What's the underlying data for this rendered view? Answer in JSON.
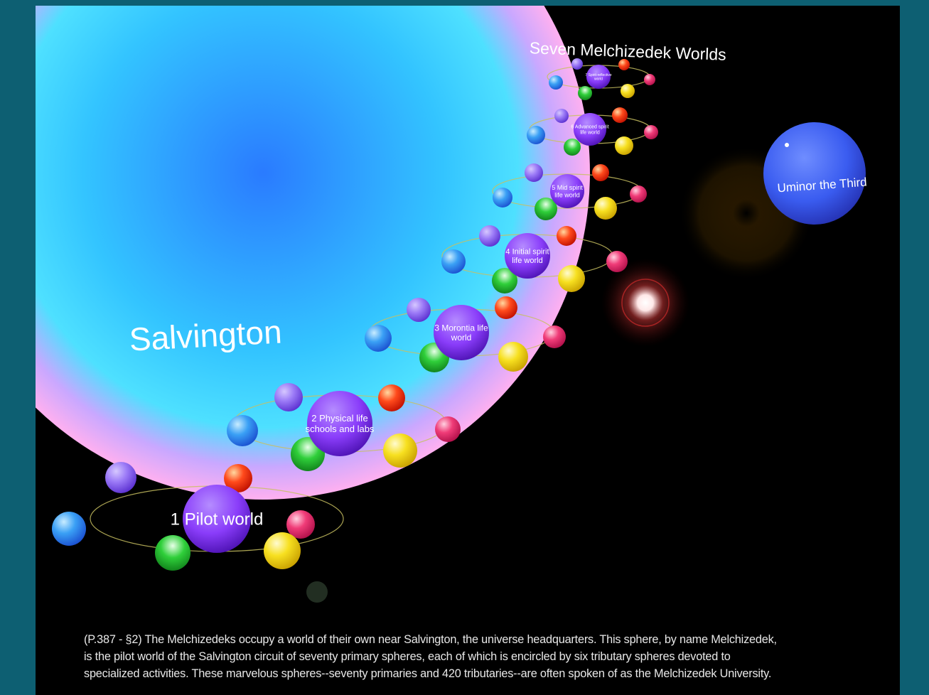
{
  "title": "Seven Melchizedek Worlds",
  "salvington_label": "Salvington",
  "uminor_label": "Uminor the Third",
  "caption_lines": [
    "(P.387 - §2) The Melchizedeks occupy a world of their own near Salvington, the universe headquarters. This sphere, by name Melchizedek,",
    " is the pilot world of the Salvington circuit of seventy primary spheres, each of which is encircled by six tributary spheres devoted to",
    "specialized activities. These marvelous spheres--seventy primaries and 420 tributaries--are often spoken of as the Melchizedek University."
  ],
  "worlds": [
    {
      "label_lines": [
        "1 Pilot world"
      ]
    },
    {
      "label_lines": [
        "2 Physical life",
        "schools and labs"
      ]
    },
    {
      "label_lines": [
        "3 Morontia life",
        "world"
      ]
    },
    {
      "label_lines": [
        "4 Initial spirit",
        "life world"
      ]
    },
    {
      "label_lines": [
        "5 Mid spirit",
        "life world"
      ]
    },
    {
      "label_lines": [
        "6 Advanced spirit",
        "life world"
      ]
    },
    {
      "label_lines": [
        "7 Spirit-reflective",
        "world"
      ]
    }
  ],
  "colors": {
    "frame": "#0d5f72",
    "background": "#000000",
    "salvington_blue": "#3aa8ff",
    "salvington_rim": "#f7a0f0",
    "primary_world": "#8a3dfa",
    "uminor": "#3a5cf0",
    "orbit": "#c8c060"
  },
  "tributary_colors": [
    "#9c7bf7",
    "#3aa0f5",
    "#2fcf3a",
    "#f7e020",
    "#f03c78",
    "#ff4a1c"
  ]
}
